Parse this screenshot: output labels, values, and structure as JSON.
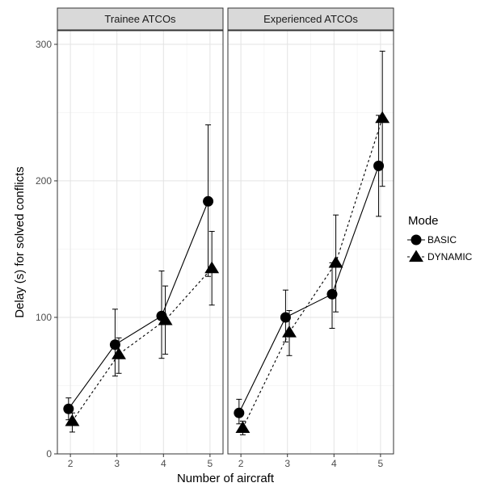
{
  "chart_data": {
    "type": "line",
    "xlabel": "Number of aircraft",
    "ylabel": "Delay (s) for solved conflicts",
    "x_ticks": [
      "2",
      "3",
      "4",
      "5"
    ],
    "y_ticks": [
      "0",
      "100",
      "200",
      "300"
    ],
    "ylim": [
      0,
      310
    ],
    "grid": true,
    "legend": {
      "title": "Mode",
      "position": "right",
      "entries": [
        {
          "label": "BASIC",
          "marker": "circle",
          "line": "solid"
        },
        {
          "label": "DYNAMIC",
          "marker": "triangle",
          "line": "dashed"
        }
      ]
    },
    "panels": [
      {
        "title": "Trainee ATCOs",
        "series": [
          {
            "name": "BASIC",
            "x": [
              2,
              3,
              4,
              5
            ],
            "y": [
              33,
              80,
              101,
              185
            ],
            "lower": [
              25,
              57,
              70,
              130
            ],
            "upper": [
              41,
              106,
              134,
              241
            ]
          },
          {
            "name": "DYNAMIC",
            "x": [
              2,
              3,
              4,
              5
            ],
            "y": [
              24,
              73,
              98,
              136
            ],
            "lower": [
              16,
              59,
              73,
              109
            ],
            "upper": [
              30,
              85,
              123,
              163
            ]
          }
        ]
      },
      {
        "title": "Experienced ATCOs",
        "series": [
          {
            "name": "BASIC",
            "x": [
              2,
              3,
              4,
              5
            ],
            "y": [
              30,
              100,
              117,
              211
            ],
            "lower": [
              22,
              82,
              92,
              174
            ],
            "upper": [
              40,
              120,
              140,
              248
            ]
          },
          {
            "name": "DYNAMIC",
            "x": [
              2,
              3,
              4,
              5
            ],
            "y": [
              19,
              89,
              140,
              246
            ],
            "lower": [
              14,
              72,
              104,
              196
            ],
            "upper": [
              24,
              105,
              175,
              295
            ]
          }
        ]
      }
    ]
  }
}
